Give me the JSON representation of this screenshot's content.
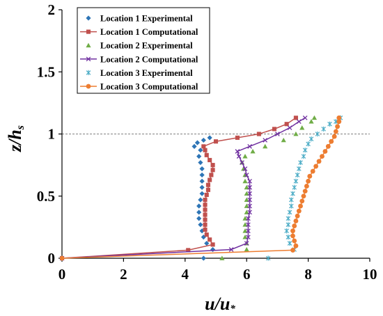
{
  "chart_data": {
    "type": "scatter",
    "title": "",
    "xlabel": {
      "main": "u/u",
      "sub": "*"
    },
    "ylabel": {
      "main": "z/h",
      "sub": "s"
    },
    "xlim": [
      0,
      10
    ],
    "ylim": [
      0,
      2
    ],
    "xticks": [
      "0",
      "2",
      "4",
      "6",
      "8",
      "10"
    ],
    "yticks": [
      "0",
      "0.5",
      "1",
      "1.5",
      "2"
    ],
    "xtick_values": [
      0,
      2,
      4,
      6,
      8,
      10
    ],
    "ytick_values": [
      0,
      0.5,
      1,
      1.5,
      2
    ],
    "grid": false,
    "reference_line": {
      "y": 1.0,
      "style": "dashed",
      "color": "#808080"
    },
    "legend_position": "top-left",
    "series": [
      {
        "name": "Location 1 Experimental",
        "kind": "markers",
        "marker": "diamond",
        "color": "#2e75b6",
        "points": [
          [
            4.6,
            0.0
          ],
          [
            4.9,
            0.07
          ],
          [
            4.7,
            0.12
          ],
          [
            4.6,
            0.17
          ],
          [
            4.55,
            0.22
          ],
          [
            4.5,
            0.27
          ],
          [
            4.45,
            0.32
          ],
          [
            4.45,
            0.37
          ],
          [
            4.45,
            0.42
          ],
          [
            4.5,
            0.47
          ],
          [
            4.55,
            0.52
          ],
          [
            4.55,
            0.57
          ],
          [
            4.55,
            0.62
          ],
          [
            4.55,
            0.67
          ],
          [
            4.55,
            0.72
          ],
          [
            4.5,
            0.77
          ],
          [
            4.45,
            0.82
          ],
          [
            4.5,
            0.87
          ],
          [
            4.3,
            0.9
          ],
          [
            4.4,
            0.93
          ],
          [
            4.6,
            0.95
          ],
          [
            4.8,
            0.97
          ]
        ]
      },
      {
        "name": "Location 1 Computational",
        "kind": "line-markers",
        "marker": "square",
        "color": "#c0504d",
        "points": [
          [
            0.0,
            0.0
          ],
          [
            4.1,
            0.065
          ],
          [
            4.9,
            0.11
          ],
          [
            4.8,
            0.15
          ],
          [
            4.7,
            0.19
          ],
          [
            4.65,
            0.23
          ],
          [
            4.65,
            0.27
          ],
          [
            4.65,
            0.31
          ],
          [
            4.65,
            0.35
          ],
          [
            4.65,
            0.39
          ],
          [
            4.65,
            0.43
          ],
          [
            4.65,
            0.47
          ],
          [
            4.7,
            0.51
          ],
          [
            4.75,
            0.55
          ],
          [
            4.75,
            0.59
          ],
          [
            4.8,
            0.63
          ],
          [
            4.85,
            0.67
          ],
          [
            4.9,
            0.71
          ],
          [
            4.9,
            0.75
          ],
          [
            4.8,
            0.79
          ],
          [
            4.7,
            0.83
          ],
          [
            4.65,
            0.87
          ],
          [
            4.6,
            0.9
          ],
          [
            5.0,
            0.94
          ],
          [
            5.7,
            0.97
          ],
          [
            6.4,
            1.0
          ],
          [
            6.9,
            1.04
          ],
          [
            7.3,
            1.08
          ],
          [
            7.6,
            1.13
          ]
        ]
      },
      {
        "name": "Location 2 Experimental",
        "kind": "markers",
        "marker": "triangle",
        "color": "#70ad47",
        "points": [
          [
            5.2,
            0.0
          ],
          [
            6.0,
            0.07
          ],
          [
            6.0,
            0.12
          ],
          [
            5.95,
            0.17
          ],
          [
            5.95,
            0.22
          ],
          [
            5.95,
            0.27
          ],
          [
            5.95,
            0.32
          ],
          [
            6.0,
            0.37
          ],
          [
            6.0,
            0.42
          ],
          [
            6.0,
            0.47
          ],
          [
            6.0,
            0.52
          ],
          [
            6.0,
            0.57
          ],
          [
            5.95,
            0.62
          ],
          [
            5.95,
            0.67
          ],
          [
            5.9,
            0.72
          ],
          [
            5.85,
            0.77
          ],
          [
            5.95,
            0.82
          ],
          [
            6.2,
            0.86
          ],
          [
            6.6,
            0.9
          ],
          [
            7.2,
            0.95
          ],
          [
            7.6,
            1.0
          ],
          [
            7.8,
            1.05
          ],
          [
            8.1,
            1.1
          ],
          [
            8.2,
            1.13
          ]
        ]
      },
      {
        "name": "Location 2 Computational",
        "kind": "line-markers",
        "marker": "x",
        "color": "#7030a0",
        "points": [
          [
            0.0,
            0.0
          ],
          [
            5.5,
            0.07
          ],
          [
            6.0,
            0.12
          ],
          [
            6.05,
            0.17
          ],
          [
            6.05,
            0.22
          ],
          [
            6.05,
            0.27
          ],
          [
            6.05,
            0.32
          ],
          [
            6.1,
            0.37
          ],
          [
            6.1,
            0.42
          ],
          [
            6.1,
            0.47
          ],
          [
            6.1,
            0.52
          ],
          [
            6.1,
            0.57
          ],
          [
            6.1,
            0.62
          ],
          [
            6.0,
            0.67
          ],
          [
            5.95,
            0.72
          ],
          [
            5.85,
            0.77
          ],
          [
            5.75,
            0.82
          ],
          [
            5.7,
            0.86
          ],
          [
            6.1,
            0.9
          ],
          [
            6.6,
            0.95
          ],
          [
            7.0,
            1.0
          ],
          [
            7.4,
            1.05
          ],
          [
            7.7,
            1.1
          ],
          [
            7.9,
            1.13
          ]
        ]
      },
      {
        "name": "Location 3 Experimental",
        "kind": "markers",
        "marker": "asterisk",
        "color": "#4bacc6",
        "points": [
          [
            6.7,
            0.0
          ],
          [
            7.55,
            0.07
          ],
          [
            7.4,
            0.12
          ],
          [
            7.35,
            0.17
          ],
          [
            7.3,
            0.22
          ],
          [
            7.35,
            0.27
          ],
          [
            7.35,
            0.32
          ],
          [
            7.4,
            0.37
          ],
          [
            7.45,
            0.42
          ],
          [
            7.45,
            0.47
          ],
          [
            7.5,
            0.52
          ],
          [
            7.55,
            0.57
          ],
          [
            7.6,
            0.62
          ],
          [
            7.65,
            0.67
          ],
          [
            7.7,
            0.72
          ],
          [
            7.75,
            0.77
          ],
          [
            7.85,
            0.82
          ],
          [
            7.9,
            0.87
          ],
          [
            8.0,
            0.92
          ],
          [
            8.1,
            0.96
          ],
          [
            8.3,
            1.0
          ],
          [
            8.5,
            1.04
          ],
          [
            8.7,
            1.08
          ],
          [
            8.9,
            1.1
          ],
          [
            9.05,
            1.13
          ]
        ]
      },
      {
        "name": "Location 3 Computational",
        "kind": "line-markers",
        "marker": "circle",
        "color": "#ed7d31",
        "points": [
          [
            0.0,
            0.0
          ],
          [
            7.5,
            0.065
          ],
          [
            7.6,
            0.1
          ],
          [
            7.55,
            0.14
          ],
          [
            7.5,
            0.18
          ],
          [
            7.5,
            0.22
          ],
          [
            7.55,
            0.26
          ],
          [
            7.6,
            0.3
          ],
          [
            7.65,
            0.34
          ],
          [
            7.7,
            0.38
          ],
          [
            7.75,
            0.42
          ],
          [
            7.8,
            0.46
          ],
          [
            7.85,
            0.5
          ],
          [
            7.9,
            0.54
          ],
          [
            7.95,
            0.58
          ],
          [
            8.0,
            0.62
          ],
          [
            8.05,
            0.66
          ],
          [
            8.15,
            0.7
          ],
          [
            8.25,
            0.74
          ],
          [
            8.35,
            0.78
          ],
          [
            8.45,
            0.82
          ],
          [
            8.55,
            0.86
          ],
          [
            8.65,
            0.9
          ],
          [
            8.75,
            0.94
          ],
          [
            8.85,
            0.98
          ],
          [
            8.9,
            1.02
          ],
          [
            8.95,
            1.06
          ],
          [
            9.0,
            1.1
          ],
          [
            9.0,
            1.13
          ]
        ]
      }
    ]
  }
}
